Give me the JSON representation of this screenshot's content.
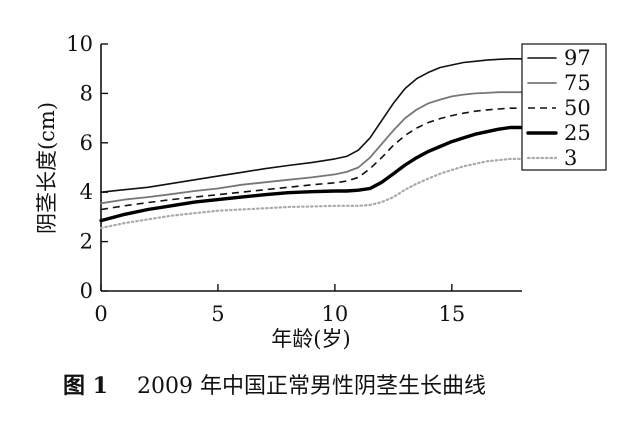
{
  "chart_data": {
    "type": "line",
    "title": "",
    "xlabel": "年龄(岁)",
    "ylabel": "阴茎长度(cm)",
    "xlim": [
      0,
      18
    ],
    "ylim": [
      0,
      10
    ],
    "xticks": [
      "0",
      "5",
      "10",
      "15"
    ],
    "yticks": [
      "0",
      "2",
      "4",
      "6",
      "8",
      "10"
    ],
    "grid": false,
    "legend_position": "right",
    "x": [
      0,
      1,
      2,
      3,
      4,
      5,
      6,
      7,
      8,
      9,
      10,
      10.5,
      11,
      11.5,
      12,
      12.5,
      13,
      13.5,
      14,
      14.5,
      15,
      15.5,
      16,
      16.5,
      17,
      17.5,
      18
    ],
    "series": [
      {
        "name": "97",
        "color": "#111111",
        "style": "solid-thin",
        "values": [
          4.0,
          4.1,
          4.2,
          4.35,
          4.5,
          4.65,
          4.8,
          4.95,
          5.08,
          5.2,
          5.35,
          5.45,
          5.7,
          6.2,
          6.9,
          7.6,
          8.2,
          8.6,
          8.85,
          9.05,
          9.15,
          9.25,
          9.3,
          9.35,
          9.38,
          9.4,
          9.4
        ]
      },
      {
        "name": "75",
        "color": "#777777",
        "style": "solid-gray",
        "values": [
          3.55,
          3.7,
          3.8,
          3.92,
          4.05,
          4.15,
          4.3,
          4.4,
          4.5,
          4.6,
          4.72,
          4.82,
          5.0,
          5.4,
          5.95,
          6.5,
          7.0,
          7.35,
          7.6,
          7.75,
          7.88,
          7.95,
          8.0,
          8.02,
          8.05,
          8.05,
          8.05
        ]
      },
      {
        "name": "50",
        "color": "#111111",
        "style": "dashed",
        "values": [
          3.3,
          3.45,
          3.58,
          3.7,
          3.8,
          3.9,
          4.0,
          4.1,
          4.2,
          4.3,
          4.38,
          4.45,
          4.6,
          4.95,
          5.4,
          5.9,
          6.3,
          6.6,
          6.82,
          6.98,
          7.1,
          7.2,
          7.28,
          7.33,
          7.37,
          7.4,
          7.4
        ]
      },
      {
        "name": "25",
        "color": "#000000",
        "style": "solid-thick",
        "values": [
          2.85,
          3.1,
          3.3,
          3.45,
          3.6,
          3.7,
          3.8,
          3.9,
          3.98,
          4.02,
          4.05,
          4.05,
          4.08,
          4.15,
          4.4,
          4.75,
          5.1,
          5.4,
          5.65,
          5.85,
          6.05,
          6.2,
          6.35,
          6.45,
          6.55,
          6.62,
          6.62
        ]
      },
      {
        "name": "3",
        "color": "#aaaaaa",
        "style": "dotted",
        "values": [
          2.55,
          2.75,
          2.9,
          3.05,
          3.15,
          3.25,
          3.3,
          3.35,
          3.4,
          3.42,
          3.45,
          3.45,
          3.45,
          3.48,
          3.6,
          3.8,
          4.1,
          4.35,
          4.55,
          4.75,
          4.9,
          5.05,
          5.15,
          5.25,
          5.3,
          5.35,
          5.35
        ]
      }
    ]
  },
  "caption": {
    "prefix": "图 1",
    "text": "2009 年中国正常男性阴茎生长曲线"
  }
}
